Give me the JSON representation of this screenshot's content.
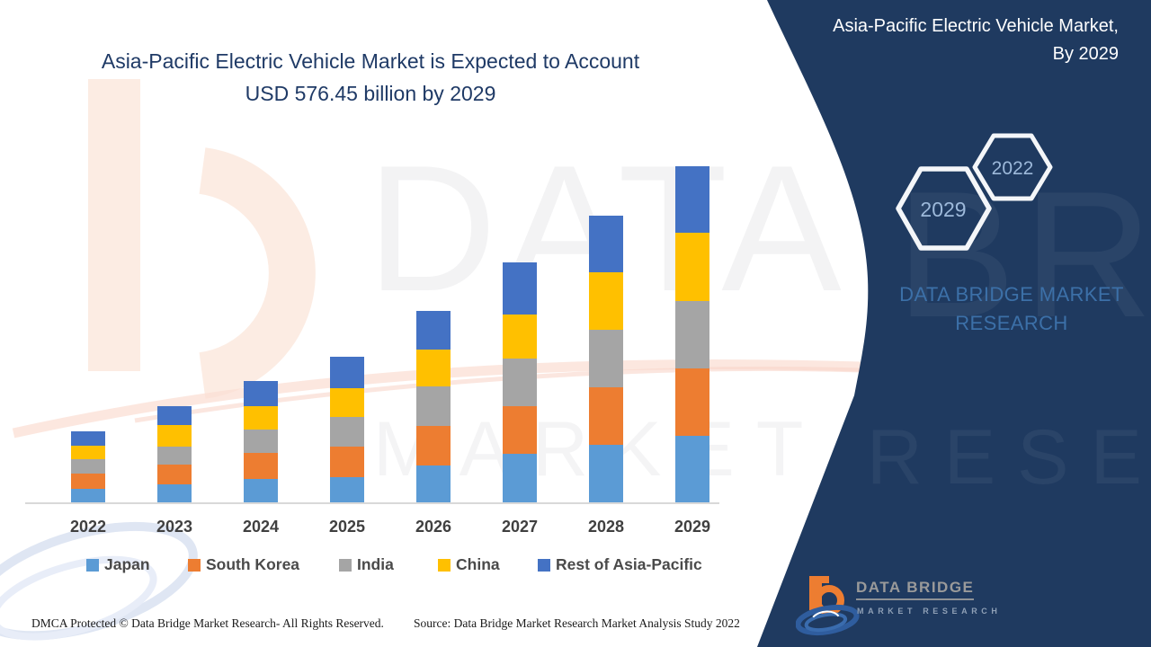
{
  "header": {
    "title_line1": "Asia-Pacific Electric Vehicle Market is Expected to Account",
    "title_line2": "USD 576.45 billion by 2029"
  },
  "side_panel": {
    "title": "Asia-Pacific Electric Vehicle Market, By 2029",
    "hexagon_badges": [
      {
        "label": "2029"
      },
      {
        "label": "2022"
      }
    ],
    "brand_line1": "DATA BRIDGE MARKET",
    "brand_line2": "RESEARCH",
    "logo": {
      "name": "DATA BRIDGE",
      "subtitle": "MARKET RESEARCH"
    }
  },
  "watermarks": {
    "row1": "DATA BRIDGE",
    "row2": "MARKET RESEARCH"
  },
  "chart_data": {
    "type": "bar",
    "stacked": true,
    "title": "Asia-Pacific Electric Vehicle Market is Expected to Account USD 576.45 billion by 2029",
    "units": "USD billion",
    "categories": [
      "2022",
      "2023",
      "2024",
      "2025",
      "2026",
      "2027",
      "2028",
      "2029"
    ],
    "series": [
      {
        "name": "Japan",
        "color": "#5B9BD5",
        "values": [
          24.6,
          32.3,
          41.5,
          44.6,
          64.6,
          84.5,
          99.9,
          115.3
        ]
      },
      {
        "name": "South Korea",
        "color": "#ED7D31",
        "values": [
          26.1,
          33.8,
          44.6,
          52.3,
          67.6,
          81.5,
          98.4,
          115.3
        ]
      },
      {
        "name": "India",
        "color": "#A5A5A5",
        "values": [
          24.6,
          30.7,
          40.0,
          50.7,
          67.6,
          81.5,
          98.4,
          115.3
        ]
      },
      {
        "name": "China",
        "color": "#FFC000",
        "values": [
          23.1,
          36.9,
          40.0,
          49.2,
          63.0,
          75.3,
          98.4,
          116.8
        ]
      },
      {
        "name": "Rest of Asia-Pacific",
        "color": "#4472C4",
        "values": [
          24.6,
          32.3,
          43.0,
          53.8,
          66.1,
          89.2,
          96.8,
          113.75
        ]
      }
    ],
    "totals_estimated": [
      123.0,
      166.0,
      209.1,
      250.6,
      328.9,
      412.0,
      491.9,
      576.45
    ],
    "anchor_label": "USD 576.45 billion by 2029",
    "y_axis_shown": false,
    "value_labels_shown": false,
    "gridlines": false,
    "legend_position": "bottom"
  },
  "footer": {
    "dmca": "DMCA Protected © Data Bridge Market Research- All Rights Reserved.",
    "source": "Source: Data Bridge Market Research Market Analysis Study 2022"
  },
  "colors": {
    "panel_navy": "#1f3a60",
    "headline_navy": "#1f3a66",
    "brand_blue": "#3c70a8",
    "hex_label_blue": "#9db9da",
    "legend_text": "#4a4a4a",
    "logo_orange": "#ED7D31",
    "logo_swirl_blue": "#2f5d9e"
  }
}
